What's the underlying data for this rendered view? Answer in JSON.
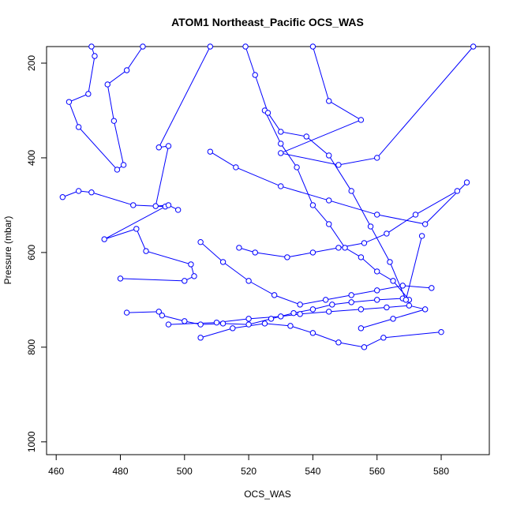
{
  "chart_data": {
    "type": "scatter",
    "lines": true,
    "title": "ATOM1 Northeast_Pacific OCS_WAS",
    "xlabel": "OCS_WAS",
    "ylabel": "Pressure (mbar)",
    "color": "#0000ff",
    "xlim": [
      457,
      595
    ],
    "ylim": [
      1027,
      165
    ],
    "xticks": [
      460,
      480,
      500,
      520,
      540,
      560,
      580
    ],
    "yticks": [
      200,
      400,
      600,
      800,
      1000
    ],
    "x": [
      487,
      482,
      476,
      478,
      481,
      479,
      467,
      464,
      470,
      472,
      471,
      null,
      462,
      467,
      471,
      484,
      494,
      475,
      485,
      488,
      502,
      503,
      500,
      480,
      null,
      508,
      492,
      495,
      491,
      495,
      498,
      null,
      482,
      492,
      493,
      500,
      505,
      512,
      520,
      527,
      534,
      540,
      546,
      552,
      560,
      568,
      null,
      495,
      510,
      520,
      530,
      536,
      545,
      555,
      563,
      570,
      575,
      565,
      555,
      null,
      505,
      515,
      525,
      533,
      540,
      548,
      556,
      562,
      580,
      null,
      508,
      516,
      530,
      545,
      560,
      575,
      588,
      null,
      540,
      545,
      555,
      530,
      548,
      560,
      590,
      null,
      525,
      530,
      535,
      540,
      545,
      550,
      555,
      560,
      565,
      570,
      null,
      519,
      522,
      526,
      530,
      538,
      545,
      552,
      558,
      564,
      569,
      574,
      null,
      505,
      512,
      520,
      528,
      536,
      544,
      552,
      560,
      568,
      577,
      null,
      517,
      522,
      532,
      540,
      548,
      556,
      563,
      572,
      585
    ],
    "y": [
      165,
      215,
      245,
      322,
      415,
      425,
      335,
      282,
      265,
      185,
      165,
      null,
      483,
      470,
      473,
      500,
      503,
      572,
      550,
      597,
      625,
      650,
      660,
      655,
      null,
      165,
      378,
      375,
      502,
      500,
      510,
      null,
      727,
      725,
      733,
      745,
      752,
      750,
      752,
      740,
      728,
      720,
      710,
      705,
      700,
      697,
      null,
      752,
      748,
      740,
      735,
      730,
      725,
      720,
      716,
      712,
      720,
      740,
      760,
      null,
      780,
      760,
      750,
      755,
      770,
      790,
      800,
      780,
      768,
      null,
      387,
      420,
      460,
      490,
      520,
      540,
      452,
      null,
      165,
      280,
      320,
      390,
      415,
      400,
      165,
      null,
      300,
      370,
      420,
      500,
      540,
      590,
      610,
      640,
      660,
      700,
      null,
      165,
      225,
      305,
      345,
      355,
      395,
      470,
      545,
      620,
      700,
      565,
      null,
      578,
      620,
      660,
      690,
      710,
      700,
      690,
      680,
      670,
      675,
      null,
      590,
      600,
      610,
      600,
      590,
      580,
      560,
      520,
      470
    ]
  }
}
